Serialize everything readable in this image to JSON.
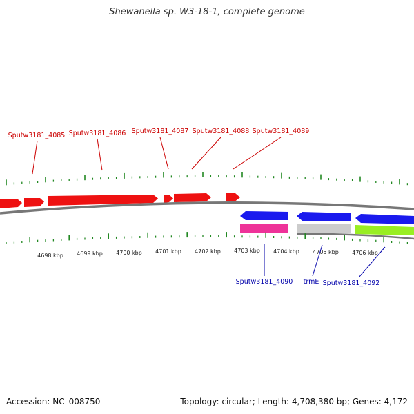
{
  "title": "Shewanella sp. W3-18-1, complete genome",
  "accession_text": "Accession: NC_008750",
  "summary_text": "Topology: circular; Length: 4,708,380 bp; Genes: 4,172",
  "colors": {
    "forward_gene": "#ee1111",
    "reverse_gene": "#1a1aee",
    "forward_label": "#cc0000",
    "reverse_label": "#0000aa",
    "tick": "#228822",
    "backbone": "#777777",
    "pink": "#ee3399",
    "gray": "#cccccc",
    "lime": "#99ee22"
  },
  "forward_labels": [
    "Sputw3181_4085",
    "Sputw3181_4086",
    "Sputw3181_4087",
    "Sputw3181_4088",
    "Sputw3181_4089"
  ],
  "reverse_labels": [
    "Sputw3181_4090",
    "trmE",
    "Sputw3181_4092"
  ],
  "kbp_labels": [
    "4698 kbp",
    "4699 kbp",
    "4700 kbp",
    "4701 kbp",
    "4702 kbp",
    "4703 kbp",
    "4704 kbp",
    "4705 kbp",
    "4706 kbp"
  ]
}
